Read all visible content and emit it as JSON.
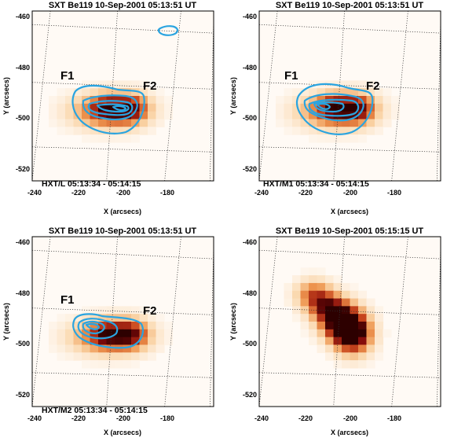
{
  "panels": [
    {
      "title": "SXT Be119 10-Sep-2001 05:13:51 UT",
      "band_label": "HXT/L  05:13:34 - 05:14:15",
      "annotations": [
        "F1",
        "F2"
      ],
      "has_contours": true
    },
    {
      "title": "SXT Be119 10-Sep-2001 05:13:51 UT",
      "band_label": "HXT/M1  05:13:34 - 05:14:15",
      "annotations": [
        "F1",
        "F2"
      ],
      "has_contours": true
    },
    {
      "title": "SXT Be119 10-Sep-2001 05:13:51 UT",
      "band_label": "HXT/M2  05:13:34 - 05:14:15",
      "annotations": [
        "F1",
        "F2"
      ],
      "has_contours": true
    },
    {
      "title": "SXT Be119 10-Sep-2001 05:15:15 UT",
      "band_label": "",
      "annotations": [],
      "has_contours": false
    }
  ],
  "axes": {
    "xlabel": "X (arcsecs)",
    "ylabel": "Y (arcsecs)",
    "xticks": [
      "-240",
      "-220",
      "-200",
      "-180"
    ],
    "yticks": [
      "-460",
      "-480",
      "-500",
      "-520"
    ]
  },
  "colors": {
    "contour": "#2aa4e0",
    "map_low": "#fdf3e8",
    "map_high": "#3a0000"
  }
}
